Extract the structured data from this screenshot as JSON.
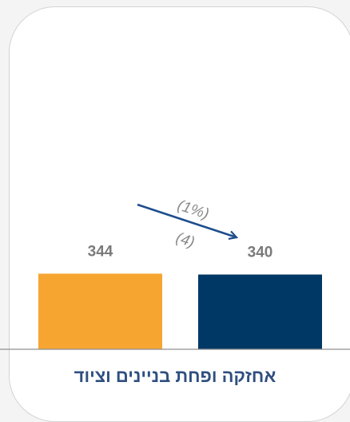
{
  "chart_data": {
    "type": "bar",
    "title": "אחזקה ופחת בניינים וציוד",
    "categories": [
      "",
      ""
    ],
    "values": [
      344,
      340
    ],
    "colors": [
      "#F7A531",
      "#003865"
    ],
    "ylim": [
      0,
      400
    ],
    "grid": false,
    "annotation": {
      "change_percent": "(1%)",
      "change_value": "(4)",
      "arrow_color": "#1E4E8C"
    }
  }
}
